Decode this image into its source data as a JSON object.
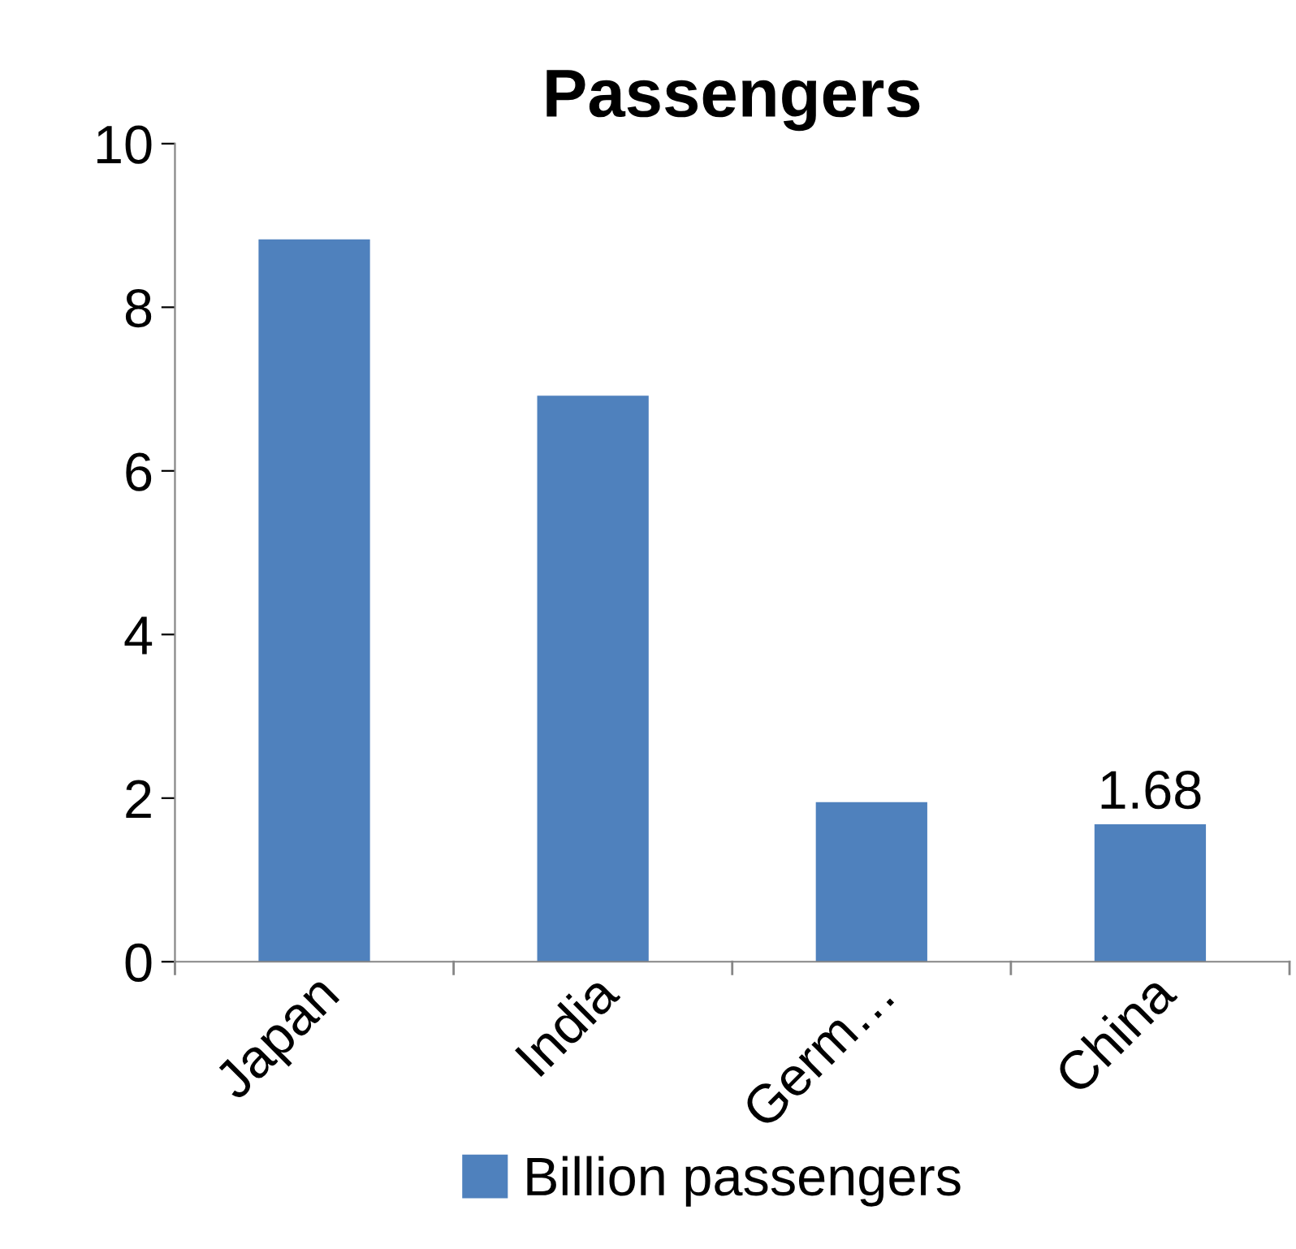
{
  "chart_data": {
    "type": "bar",
    "title": "Passengers",
    "categories": [
      "Japan",
      "India",
      "Germ…",
      "China"
    ],
    "series": [
      {
        "name": "Billion passengers",
        "color": "#4f81bd",
        "values": [
          8.83,
          6.92,
          1.95,
          1.68
        ],
        "value_labels": [
          null,
          null,
          null,
          "1.68"
        ]
      }
    ],
    "ylim": [
      0,
      10
    ],
    "yticks": [
      0,
      2,
      4,
      6,
      8,
      10
    ],
    "grid": false,
    "legend": "bottom"
  }
}
